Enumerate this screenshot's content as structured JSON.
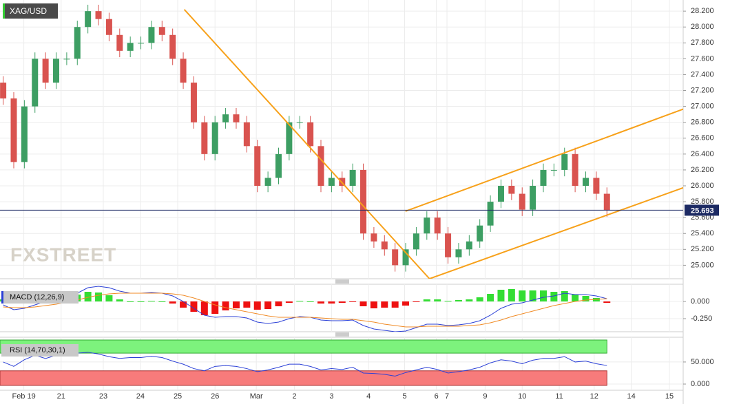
{
  "chart_data": [
    {
      "type": "candlestick",
      "title": "XAG/USD",
      "watermark": "FXSTREET",
      "open": [
        27.3,
        27.1,
        26.3,
        27.0,
        27.6,
        27.3,
        27.6,
        27.6,
        28.0,
        28.2,
        28.1,
        27.9,
        27.7,
        27.8,
        27.8,
        28.0,
        27.9,
        27.6,
        27.3,
        26.8,
        26.4,
        26.8,
        26.9,
        26.8,
        26.5,
        26.0,
        26.1,
        26.4,
        26.8,
        26.8,
        26.5,
        26.0,
        26.1,
        26.0,
        26.2,
        25.4,
        25.3,
        25.2,
        25.0,
        25.2,
        25.4,
        25.6,
        25.4,
        25.1,
        25.2,
        25.3,
        25.5,
        25.8,
        26.0,
        25.9,
        25.7,
        26.0,
        26.2,
        26.2,
        26.4,
        26.0,
        26.1,
        25.9
      ],
      "high": [
        27.38,
        27.18,
        27.08,
        27.68,
        27.68,
        27.68,
        27.68,
        28.08,
        28.28,
        28.28,
        28.18,
        27.98,
        27.88,
        27.88,
        28.08,
        28.08,
        27.98,
        27.68,
        27.38,
        26.88,
        26.88,
        26.98,
        26.98,
        26.88,
        26.58,
        26.18,
        26.48,
        26.88,
        26.88,
        26.88,
        26.58,
        26.18,
        26.18,
        26.28,
        26.28,
        25.48,
        25.38,
        25.28,
        25.28,
        25.48,
        25.68,
        25.68,
        25.48,
        25.28,
        25.38,
        25.58,
        25.88,
        26.08,
        26.08,
        25.98,
        26.08,
        26.28,
        26.28,
        26.48,
        26.48,
        26.18,
        26.18,
        25.98
      ],
      "low": [
        27.02,
        26.22,
        26.22,
        26.92,
        27.22,
        27.22,
        27.52,
        27.52,
        27.92,
        28.02,
        27.82,
        27.62,
        27.62,
        27.72,
        27.72,
        27.82,
        27.52,
        27.22,
        26.72,
        26.32,
        26.32,
        26.72,
        26.72,
        26.42,
        25.92,
        25.92,
        26.02,
        26.32,
        26.72,
        26.42,
        25.92,
        25.92,
        25.92,
        25.92,
        25.32,
        25.22,
        25.12,
        24.92,
        24.92,
        25.12,
        25.32,
        25.32,
        25.02,
        25.02,
        25.12,
        25.22,
        25.42,
        25.72,
        25.82,
        25.62,
        25.62,
        25.92,
        26.12,
        26.12,
        25.92,
        25.92,
        25.82,
        25.61
      ],
      "close": [
        27.1,
        26.3,
        27.0,
        27.6,
        27.3,
        27.6,
        27.6,
        28.0,
        28.2,
        28.1,
        27.9,
        27.7,
        27.8,
        27.8,
        28.0,
        27.9,
        27.6,
        27.3,
        26.8,
        26.4,
        26.8,
        26.9,
        26.8,
        26.5,
        26.0,
        26.1,
        26.4,
        26.8,
        26.8,
        26.5,
        26.0,
        26.1,
        26.0,
        26.2,
        25.4,
        25.3,
        25.2,
        25.0,
        25.2,
        25.4,
        25.6,
        25.4,
        25.1,
        25.2,
        25.3,
        25.5,
        25.8,
        26.0,
        25.9,
        25.7,
        26.0,
        26.2,
        26.2,
        26.4,
        26.0,
        26.1,
        25.9,
        25.69
      ],
      "up_color": "#3d9e63",
      "down_color": "#d9534f",
      "last_price": 25.693,
      "last_price_color": "#1c2a63",
      "trendlines": [
        {
          "color": "#f7a11a",
          "points": [
            [
              17.1,
              28.22
            ],
            [
              40.25,
              24.83
            ]
          ]
        },
        {
          "color": "#f7a11a",
          "points": [
            [
              40.25,
              24.83
            ],
            [
              64.5,
              25.99
            ]
          ]
        },
        {
          "color": "#f7a11a",
          "points": [
            [
              37.98,
              25.68
            ],
            [
              64.5,
              26.98
            ]
          ]
        }
      ],
      "xlim": [
        -0.3,
        64.2
      ],
      "ylim": [
        24.83,
        28.34
      ],
      "yticks": [
        {
          "value": 28.2,
          "label": "28.200"
        },
        {
          "value": 28.0,
          "label": "28.000"
        },
        {
          "value": 27.8,
          "label": "27.800"
        },
        {
          "value": 27.6,
          "label": "27.600"
        },
        {
          "value": 27.4,
          "label": "27.400"
        },
        {
          "value": 27.2,
          "label": "27.200"
        },
        {
          "value": 27.0,
          "label": "27.000"
        },
        {
          "value": 26.8,
          "label": "26.800"
        },
        {
          "value": 26.6,
          "label": "26.600"
        },
        {
          "value": 26.4,
          "label": "26.400"
        },
        {
          "value": 26.2,
          "label": "26.200"
        },
        {
          "value": 26.0,
          "label": "26.000"
        },
        {
          "value": 25.8,
          "label": "25.800"
        },
        {
          "value": 25.6,
          "label": "25.600"
        },
        {
          "value": 25.4,
          "label": "25.400"
        },
        {
          "value": 25.2,
          "label": "25.200"
        },
        {
          "value": 25.0,
          "label": "25.000"
        }
      ],
      "xticks": [
        {
          "value": 1.95,
          "label": "Feb 19"
        },
        {
          "value": 5.47,
          "label": "21"
        },
        {
          "value": 9.45,
          "label": "23"
        },
        {
          "value": 12.96,
          "label": "24"
        },
        {
          "value": 16.48,
          "label": "25"
        },
        {
          "value": 20.0,
          "label": "26"
        },
        {
          "value": 23.9,
          "label": "Mar"
        },
        {
          "value": 27.5,
          "label": "2"
        },
        {
          "value": 31.0,
          "label": "3"
        },
        {
          "value": 34.5,
          "label": "4"
        },
        {
          "value": 37.9,
          "label": "5"
        },
        {
          "value": 40.9,
          "label": "6"
        },
        {
          "value": 41.9,
          "label": "7"
        },
        {
          "value": 45.5,
          "label": "9"
        },
        {
          "value": 49.0,
          "label": "10"
        },
        {
          "value": 52.5,
          "label": "11"
        },
        {
          "value": 55.8,
          "label": "12"
        },
        {
          "value": 59.3,
          "label": "14"
        },
        {
          "value": 62.9,
          "label": "15"
        }
      ],
      "grid": true
    },
    {
      "type": "macd",
      "title": "MACD (12,26,9)",
      "histogram": [
        0.03,
        -0.03,
        -0.01,
        0.03,
        0.06,
        0.09,
        0.09,
        0.1,
        0.14,
        0.13,
        0.09,
        0.03,
        0.0,
        0.0,
        0.01,
        0.0,
        -0.03,
        -0.09,
        -0.15,
        -0.2,
        -0.18,
        -0.13,
        -0.1,
        -0.09,
        -0.12,
        -0.11,
        -0.07,
        -0.02,
        0.01,
        0.0,
        -0.03,
        -0.03,
        -0.02,
        -0.01,
        -0.07,
        -0.1,
        -0.09,
        -0.09,
        -0.06,
        -0.01,
        0.03,
        0.03,
        0.01,
        0.02,
        0.03,
        0.06,
        0.11,
        0.17,
        0.18,
        0.16,
        0.16,
        0.16,
        0.14,
        0.15,
        0.1,
        0.08,
        0.05,
        -0.02
      ],
      "positive_color": "#33dd33",
      "negative_color": "#ee1111",
      "macd": [
        -0.05,
        -0.12,
        -0.1,
        -0.05,
        0.0,
        0.05,
        0.08,
        0.12,
        0.2,
        0.22,
        0.2,
        0.15,
        0.12,
        0.12,
        0.13,
        0.12,
        0.08,
        0.0,
        -0.1,
        -0.2,
        -0.23,
        -0.22,
        -0.22,
        -0.24,
        -0.3,
        -0.32,
        -0.3,
        -0.25,
        -0.22,
        -0.23,
        -0.27,
        -0.28,
        -0.28,
        -0.27,
        -0.35,
        -0.4,
        -0.42,
        -0.44,
        -0.43,
        -0.38,
        -0.33,
        -0.33,
        -0.35,
        -0.34,
        -0.32,
        -0.28,
        -0.2,
        -0.1,
        -0.04,
        -0.02,
        0.02,
        0.06,
        0.08,
        0.12,
        0.1,
        0.1,
        0.08,
        0.04
      ],
      "macd_color": "#2a3fd6",
      "signal": [
        -0.08,
        -0.09,
        -0.09,
        -0.08,
        -0.06,
        -0.04,
        -0.01,
        0.02,
        0.06,
        0.09,
        0.11,
        0.12,
        0.12,
        0.12,
        0.12,
        0.12,
        0.11,
        0.09,
        0.05,
        0.0,
        -0.05,
        -0.09,
        -0.12,
        -0.15,
        -0.18,
        -0.21,
        -0.23,
        -0.23,
        -0.23,
        -0.23,
        -0.24,
        -0.25,
        -0.26,
        -0.26,
        -0.28,
        -0.3,
        -0.33,
        -0.35,
        -0.37,
        -0.37,
        -0.36,
        -0.36,
        -0.36,
        -0.36,
        -0.35,
        -0.34,
        -0.31,
        -0.27,
        -0.22,
        -0.18,
        -0.14,
        -0.1,
        -0.06,
        -0.03,
        0.0,
        0.02,
        0.03,
        0.04
      ],
      "signal_color": "#f08a24",
      "ylim": [
        -0.44,
        0.25
      ],
      "yticks": [
        {
          "value": 0,
          "label": "0.000"
        },
        {
          "value": -0.25,
          "label": "-0.250"
        }
      ]
    },
    {
      "type": "line",
      "title": "RSI (14,70,30,1)",
      "values": [
        50,
        40,
        55,
        65,
        58,
        65,
        64,
        70,
        72,
        68,
        62,
        58,
        60,
        60,
        63,
        60,
        52,
        45,
        35,
        30,
        40,
        42,
        40,
        35,
        28,
        32,
        38,
        45,
        45,
        40,
        32,
        35,
        33,
        38,
        25,
        24,
        22,
        18,
        26,
        32,
        38,
        33,
        25,
        28,
        32,
        38,
        48,
        55,
        52,
        46,
        54,
        58,
        58,
        62,
        50,
        52,
        46,
        42
      ],
      "color": "#2a3fd6",
      "overbought": 70,
      "overbought_color": "#7df27d",
      "oversold": 30,
      "oversold_color": "#f77b7b",
      "ylim": [
        -14,
        106
      ],
      "yticks": [
        {
          "value": 50,
          "label": "50.000"
        },
        {
          "value": 0,
          "label": "0.000"
        }
      ]
    }
  ]
}
